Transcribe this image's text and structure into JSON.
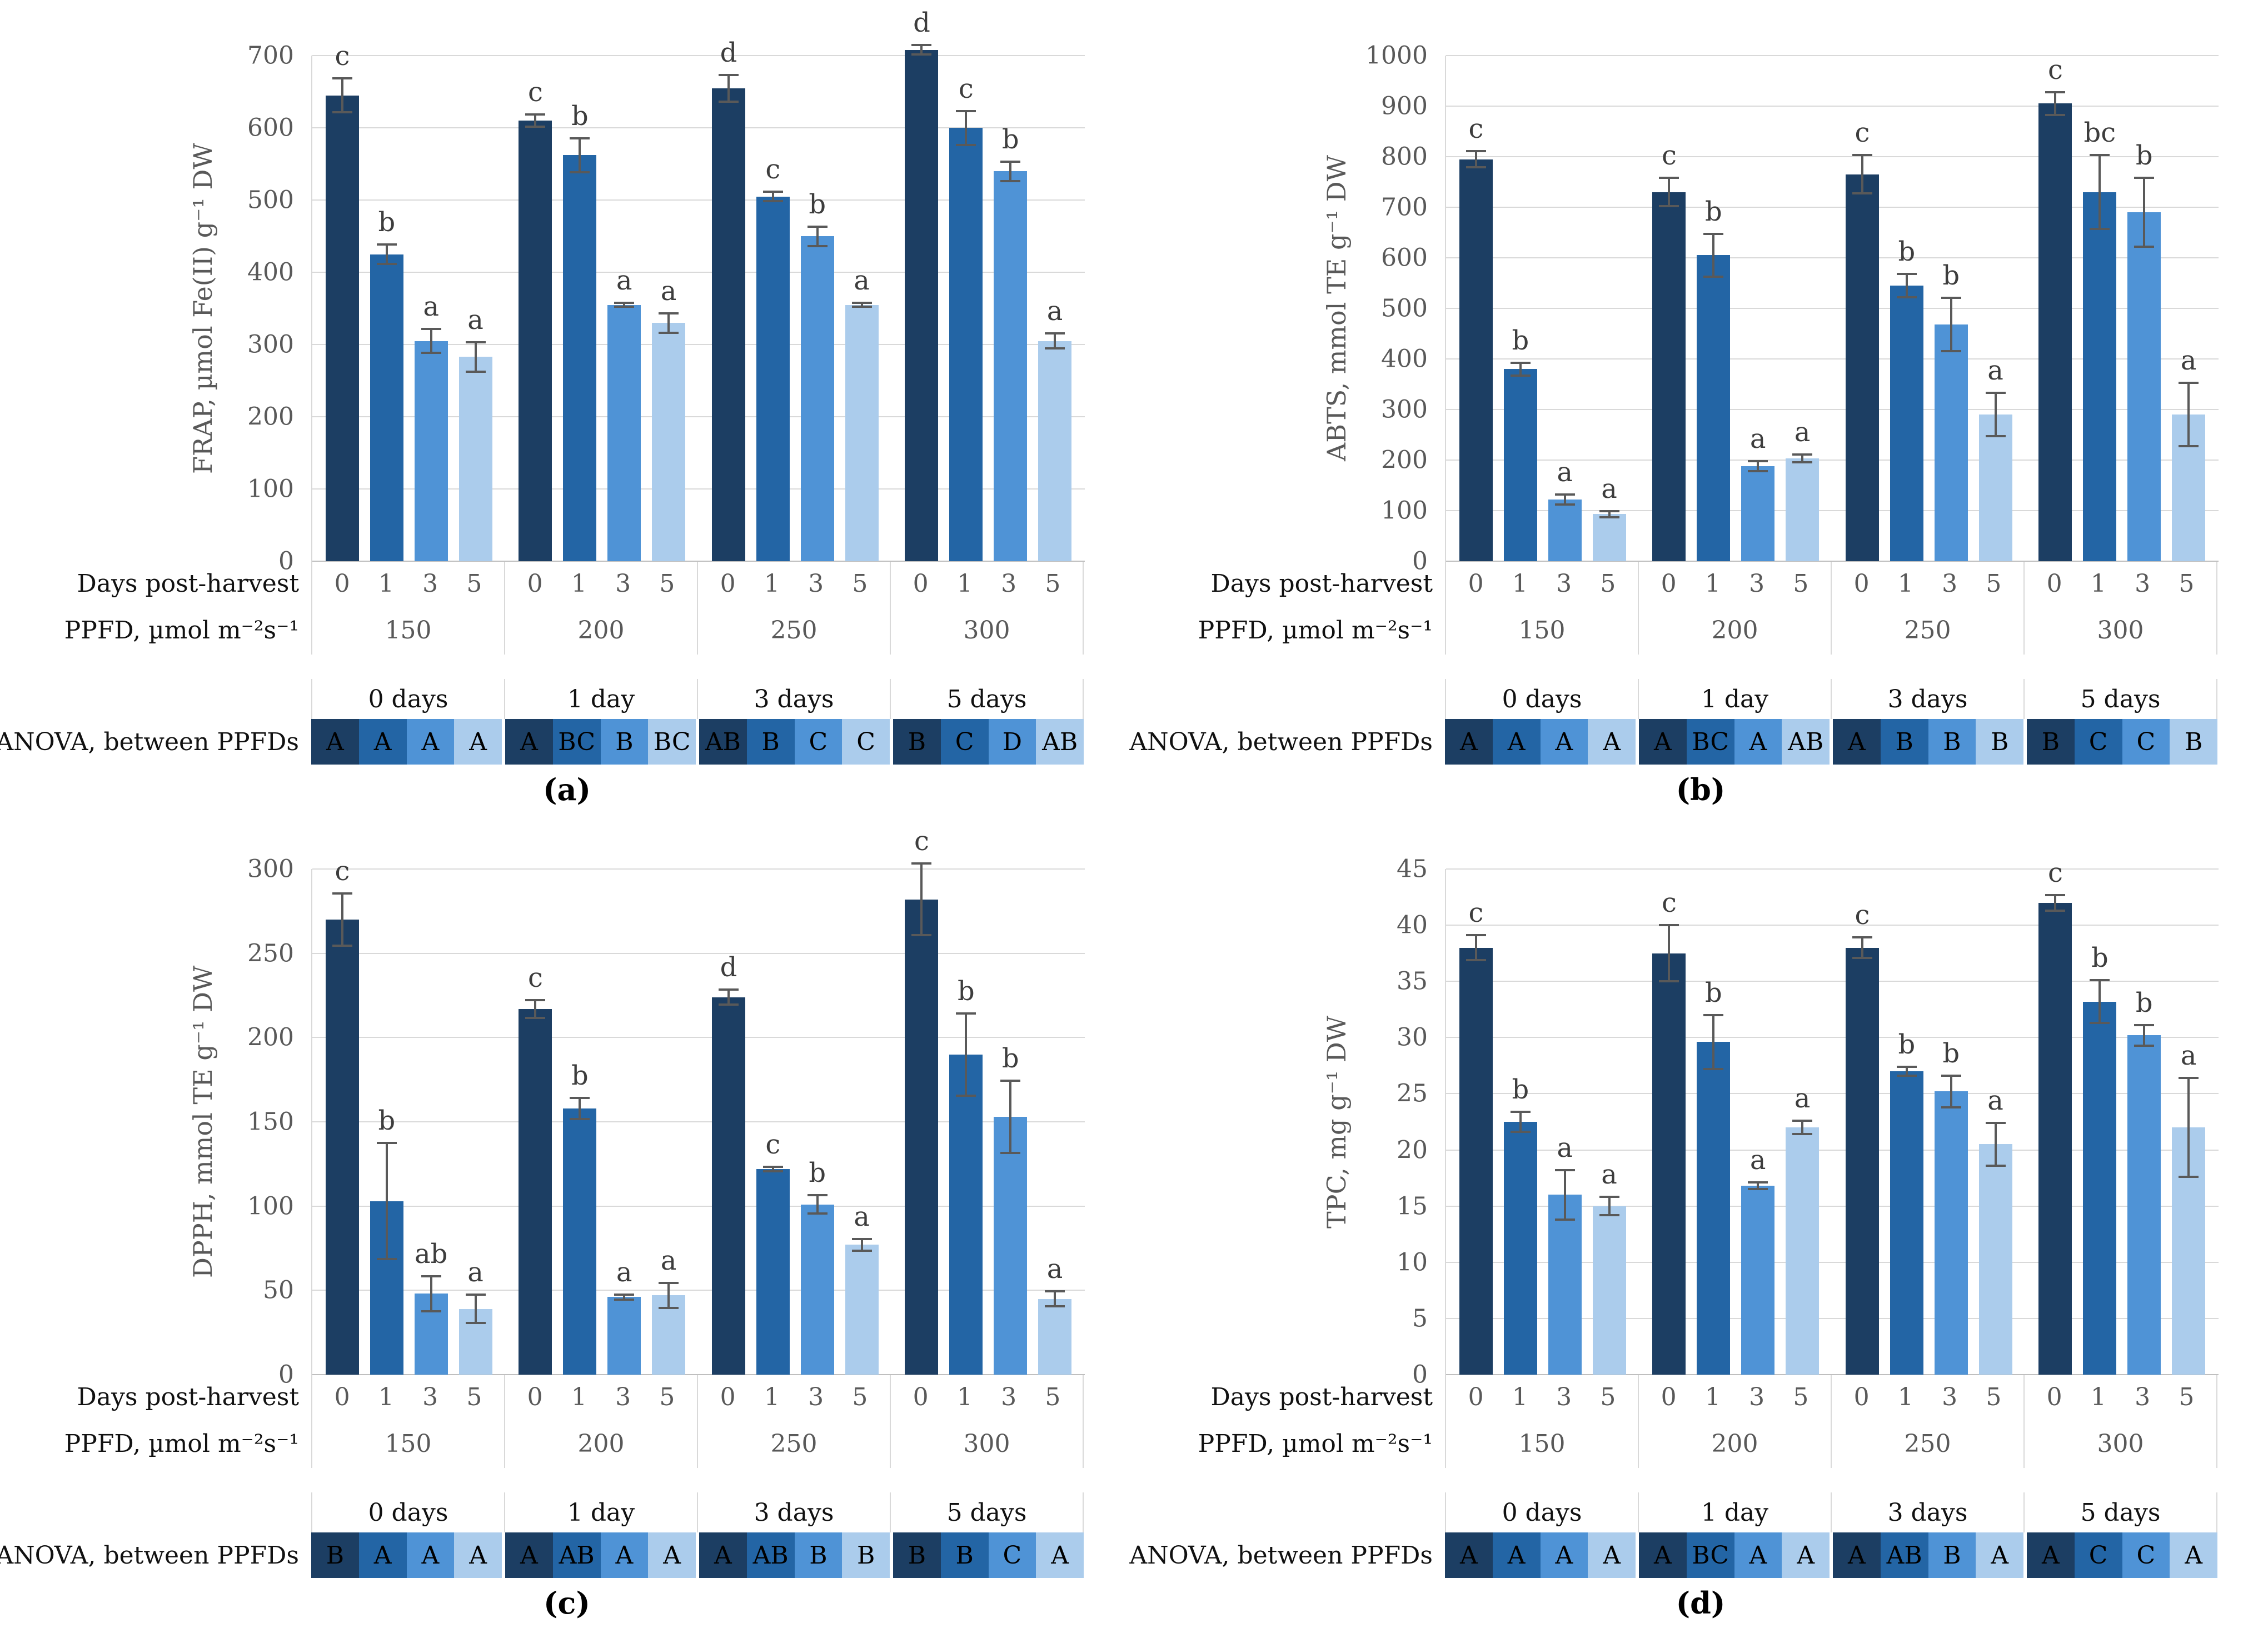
{
  "shared": {
    "days_row_label": "Days post-harvest",
    "ppfd_row_label": "PPFD, µmol m⁻²s⁻¹",
    "anova_row_label": "ANOVA, between PPFDs",
    "anova_headers": [
      "0 days",
      "1 day",
      "3 days",
      "5 days"
    ],
    "colors": {
      "series": [
        "#1c3e63",
        "#2365a5",
        "#4f93d6",
        "#abccec"
      ],
      "gridline": "#d9d9d9",
      "axis_line": "#bfbfbf",
      "error_bar": "#595959",
      "axis_text": "#595959",
      "sig_letter_text": "#3d3d3d",
      "anova_letter_text": "#000000"
    }
  },
  "chart_data": {
    "type": "bar",
    "legend": "none",
    "grid": "horizontal",
    "group_categories_label": "PPFD, µmol m⁻²s⁻¹",
    "bar_categories_label": "Days post-harvest",
    "panels": [
      {
        "id": "a",
        "caption": "(a)",
        "ylabel": "FRAP, µmol Fe(II) g⁻¹ DW",
        "ylim": [
          0,
          700
        ],
        "ystep": 100,
        "yticks": [
          "0",
          "100",
          "200",
          "300",
          "400",
          "500",
          "600",
          "700"
        ],
        "groups": [
          {
            "ppfd": "150",
            "days": [
              "0",
              "1",
              "3",
              "5"
            ],
            "values": [
              645,
              425,
              305,
              283
            ],
            "errors": [
              25,
              15,
              18,
              22
            ],
            "letters": [
              "c",
              "b",
              "a",
              "a"
            ],
            "anova": [
              "A",
              "A",
              "A",
              "A"
            ]
          },
          {
            "ppfd": "200",
            "days": [
              "0",
              "1",
              "3",
              "5"
            ],
            "values": [
              610,
              562,
              355,
              330
            ],
            "errors": [
              10,
              25,
              4,
              15
            ],
            "letters": [
              "c",
              "b",
              "a",
              "a"
            ],
            "anova": [
              "A",
              "BC",
              "B",
              "BC"
            ]
          },
          {
            "ppfd": "250",
            "days": [
              "0",
              "1",
              "3",
              "5"
            ],
            "values": [
              655,
              505,
              450,
              355
            ],
            "errors": [
              20,
              8,
              15,
              4
            ],
            "letters": [
              "d",
              "c",
              "b",
              "a"
            ],
            "anova": [
              "AB",
              "B",
              "C",
              "C"
            ]
          },
          {
            "ppfd": "300",
            "days": [
              "0",
              "1",
              "3",
              "5"
            ],
            "values": [
              708,
              600,
              540,
              305
            ],
            "errors": [
              8,
              25,
              15,
              12
            ],
            "letters": [
              "d",
              "c",
              "b",
              "a"
            ],
            "anova": [
              "B",
              "C",
              "D",
              "AB"
            ]
          }
        ]
      },
      {
        "id": "b",
        "caption": "(b)",
        "ylabel": "ABTS, mmol TE g⁻¹ DW",
        "ylim": [
          0,
          1000
        ],
        "ystep": 100,
        "yticks": [
          "0",
          "100",
          "200",
          "300",
          "400",
          "500",
          "600",
          "700",
          "800",
          "900",
          "1000"
        ],
        "groups": [
          {
            "ppfd": "150",
            "days": [
              "0",
              "1",
              "3",
              "5"
            ],
            "values": [
              795,
              380,
              122,
              93
            ],
            "errors": [
              18,
              15,
              12,
              8
            ],
            "letters": [
              "c",
              "b",
              "a",
              "a"
            ],
            "anova": [
              "A",
              "A",
              "A",
              "A"
            ]
          },
          {
            "ppfd": "200",
            "days": [
              "0",
              "1",
              "3",
              "5"
            ],
            "values": [
              730,
              605,
              188,
              203
            ],
            "errors": [
              30,
              45,
              12,
              10
            ],
            "letters": [
              "c",
              "b",
              "a",
              "a"
            ],
            "anova": [
              "A",
              "BC",
              "A",
              "AB"
            ]
          },
          {
            "ppfd": "250",
            "days": [
              "0",
              "1",
              "3",
              "5"
            ],
            "values": [
              765,
              545,
              468,
              290
            ],
            "errors": [
              40,
              25,
              55,
              45
            ],
            "letters": [
              "c",
              "b",
              "b",
              "a"
            ],
            "anova": [
              "A",
              "B",
              "B",
              "B"
            ]
          },
          {
            "ppfd": "300",
            "days": [
              "0",
              "1",
              "3",
              "5"
            ],
            "values": [
              905,
              730,
              690,
              290
            ],
            "errors": [
              25,
              75,
              70,
              65
            ],
            "letters": [
              "c",
              "bc",
              "b",
              "a"
            ],
            "anova": [
              "B",
              "C",
              "C",
              "B"
            ]
          }
        ]
      },
      {
        "id": "c",
        "caption": "(c)",
        "ylabel": "DPPH, mmol TE g⁻¹ DW",
        "ylim": [
          0,
          300
        ],
        "ystep": 50,
        "yticks": [
          "0",
          "50",
          "100",
          "150",
          "200",
          "250",
          "300"
        ],
        "groups": [
          {
            "ppfd": "150",
            "days": [
              "0",
              "1",
              "3",
              "5"
            ],
            "values": [
              270,
              103,
              48,
              39
            ],
            "errors": [
              16,
              35,
              11,
              9
            ],
            "letters": [
              "c",
              "b",
              "ab",
              "a"
            ],
            "anova": [
              "B",
              "A",
              "A",
              "A"
            ]
          },
          {
            "ppfd": "200",
            "days": [
              "0",
              "1",
              "3",
              "5"
            ],
            "values": [
              217,
              158,
              46,
              47
            ],
            "errors": [
              6,
              7,
              2,
              8
            ],
            "letters": [
              "c",
              "b",
              "a",
              "a"
            ],
            "anova": [
              "A",
              "AB",
              "A",
              "A"
            ]
          },
          {
            "ppfd": "250",
            "days": [
              "0",
              "1",
              "3",
              "5"
            ],
            "values": [
              224,
              122,
              101,
              77
            ],
            "errors": [
              5,
              2,
              6,
              4
            ],
            "letters": [
              "d",
              "c",
              "b",
              "a"
            ],
            "anova": [
              "A",
              "AB",
              "B",
              "B"
            ]
          },
          {
            "ppfd": "300",
            "days": [
              "0",
              "1",
              "3",
              "5"
            ],
            "values": [
              282,
              190,
              153,
              45
            ],
            "errors": [
              22,
              25,
              22,
              5
            ],
            "letters": [
              "c",
              "b",
              "b",
              "a"
            ],
            "anova": [
              "B",
              "B",
              "C",
              "A"
            ]
          }
        ]
      },
      {
        "id": "d",
        "caption": "(d)",
        "ylabel": "TPC, mg g⁻¹ DW",
        "ylim": [
          0,
          45
        ],
        "ystep": 5,
        "yticks": [
          "0",
          "5",
          "10",
          "15",
          "20",
          "25",
          "30",
          "35",
          "40",
          "45"
        ],
        "groups": [
          {
            "ppfd": "150",
            "days": [
              "0",
              "1",
              "3",
              "5"
            ],
            "values": [
              38,
              22.5,
              16,
              15
            ],
            "errors": [
              1.2,
              1,
              2.3,
              0.9
            ],
            "letters": [
              "c",
              "b",
              "a",
              "a"
            ],
            "anova": [
              "A",
              "A",
              "A",
              "A"
            ]
          },
          {
            "ppfd": "200",
            "days": [
              "0",
              "1",
              "3",
              "5"
            ],
            "values": [
              37.5,
              29.6,
              16.8,
              22
            ],
            "errors": [
              2.6,
              2.5,
              0.4,
              0.7
            ],
            "letters": [
              "c",
              "b",
              "a",
              "a"
            ],
            "anova": [
              "A",
              "BC",
              "A",
              "A"
            ]
          },
          {
            "ppfd": "250",
            "days": [
              "0",
              "1",
              "3",
              "5"
            ],
            "values": [
              38,
              27,
              25.2,
              20.5
            ],
            "errors": [
              1,
              0.5,
              1.5,
              2
            ],
            "letters": [
              "c",
              "b",
              "b",
              "a"
            ],
            "anova": [
              "A",
              "AB",
              "B",
              "A"
            ]
          },
          {
            "ppfd": "300",
            "days": [
              "0",
              "1",
              "3",
              "5"
            ],
            "values": [
              42,
              33.2,
              30.2,
              22
            ],
            "errors": [
              0.8,
              2,
              1,
              4.5
            ],
            "letters": [
              "c",
              "b",
              "b",
              "a"
            ],
            "anova": [
              "A",
              "C",
              "C",
              "A"
            ]
          }
        ]
      }
    ]
  }
}
